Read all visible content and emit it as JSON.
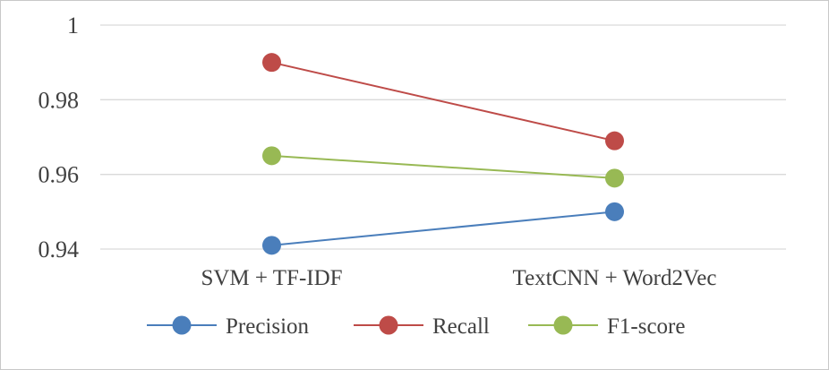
{
  "chart_data": {
    "type": "line",
    "title": "",
    "xlabel": "",
    "ylabel": "",
    "categories": [
      "SVM + TF-IDF",
      "TextCNN + Word2Vec"
    ],
    "ylim": [
      0.94,
      1
    ],
    "yticks": [
      "0.94",
      "0.96",
      "0.98",
      "1"
    ],
    "ytick_values": [
      0.94,
      0.96,
      0.98,
      1.0
    ],
    "grid": true,
    "legend_position": "bottom",
    "series": [
      {
        "name": "Precision",
        "values": [
          0.941,
          0.95
        ],
        "color": "#4a7ebb"
      },
      {
        "name": "Recall",
        "values": [
          0.99,
          0.969
        ],
        "color": "#be4b48"
      },
      {
        "name": "F1-score",
        "values": [
          0.965,
          0.959
        ],
        "color": "#98b954"
      }
    ]
  }
}
